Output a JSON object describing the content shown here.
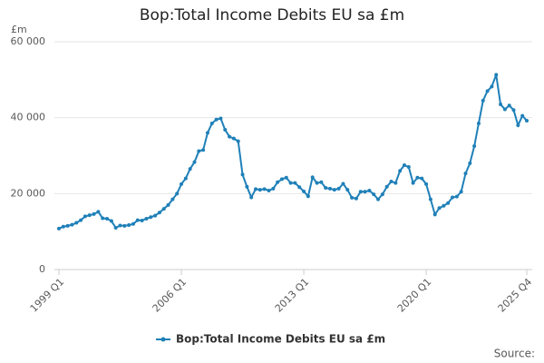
{
  "chart_data": {
    "type": "line",
    "title": "Bop:Total Income Debits EU sa £m",
    "y_label": "£m",
    "source": "Source:",
    "categories": [
      "1999 Q1",
      null,
      null,
      null,
      null,
      null,
      null,
      null,
      null,
      null,
      null,
      null,
      null,
      null,
      null,
      null,
      null,
      null,
      null,
      null,
      null,
      null,
      null,
      null,
      null,
      null,
      null,
      null,
      "2006 Q1",
      null,
      null,
      null,
      null,
      null,
      null,
      null,
      null,
      null,
      null,
      null,
      null,
      null,
      null,
      null,
      null,
      null,
      null,
      null,
      null,
      null,
      null,
      null,
      null,
      null,
      null,
      null,
      "2013 Q1",
      null,
      null,
      null,
      null,
      null,
      null,
      null,
      null,
      null,
      null,
      null,
      null,
      null,
      null,
      null,
      null,
      null,
      null,
      null,
      null,
      null,
      null,
      null,
      null,
      null,
      null,
      null,
      "2020 Q1",
      null,
      null,
      null,
      null,
      null,
      null,
      null,
      null,
      null,
      null,
      null,
      null,
      null,
      null,
      null,
      null,
      null,
      null,
      null,
      null,
      null,
      null,
      "2025 Q4"
    ],
    "series": [
      {
        "name": "Bop:Total Income Debits EU sa £m",
        "color": "#1f80b8",
        "values": [
          10800,
          11300,
          11500,
          11800,
          12300,
          13000,
          14000,
          14300,
          14600,
          15200,
          13500,
          13400,
          12800,
          11000,
          11600,
          11500,
          11700,
          12000,
          13000,
          12900,
          13400,
          13800,
          14200,
          15000,
          16000,
          17000,
          18500,
          20000,
          22500,
          24000,
          26500,
          28300,
          31200,
          31500,
          36000,
          38500,
          39500,
          39800,
          36800,
          35000,
          34500,
          33800,
          25000,
          21800,
          19000,
          21200,
          21000,
          21200,
          20800,
          21300,
          23000,
          23800,
          24200,
          22800,
          22800,
          21700,
          20600,
          19300,
          24300,
          22800,
          23000,
          21500,
          21300,
          21000,
          21300,
          22600,
          21000,
          18900,
          18700,
          20500,
          20500,
          20800,
          19800,
          18500,
          19800,
          21800,
          23200,
          22800,
          26000,
          27500,
          27000,
          22800,
          24200,
          24000,
          22500,
          18500,
          14500,
          16200,
          16800,
          17500,
          19000,
          19200,
          20500,
          25300,
          28000,
          32500,
          38500,
          44500,
          47000,
          48200,
          51300,
          43500,
          42200,
          43200,
          42000,
          38000,
          40500,
          39200
        ]
      }
    ],
    "ylim": [
      0,
      60000
    ],
    "yticks": [
      0,
      {
        "value": 20000,
        "label": "20 000"
      },
      {
        "value": 40000,
        "label": "40 000"
      },
      {
        "value": 60000,
        "label": "60 000"
      }
    ],
    "grid": true
  }
}
